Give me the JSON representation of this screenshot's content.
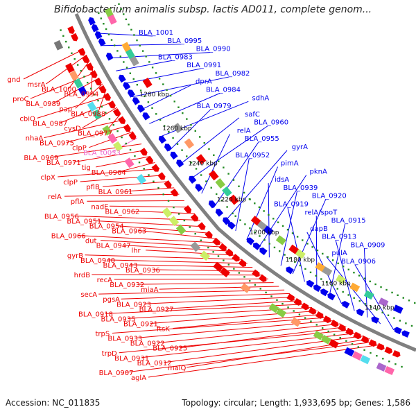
{
  "header": {
    "title": "Bifidobacterium animalis subsp. lactis AD011, complete genom..."
  },
  "footer": {
    "accession": "Accession: NC_011835",
    "info": "Topology: circular; Length: 1,933,695 bp; Genes: 1,586"
  },
  "colors": {
    "forward": "#ee0000",
    "reverse": "#0000ee",
    "rna": "#ee66cc",
    "backbone": "#808080",
    "tick_dot": "#228b22"
  },
  "ticks": [
    "1280 kbp",
    "1260 kbp",
    "1240 kbp",
    "1220 kbp",
    "1200 kbp",
    "1180 kbp",
    "1160 kbp",
    "1140 kbp"
  ],
  "left_labels": [
    "gnd",
    "msrA",
    "BLA_1000",
    "BLA_0994",
    "proC",
    "BLA_0989",
    "pap",
    "BLA_0988",
    "cbiO",
    "BLA_0987",
    "cysD",
    "BLA_0977",
    "nhaA",
    "BLA_0975",
    "clpP",
    "BLA_t0033",
    "BLA_0969",
    "BLA_0971",
    "tig",
    "BLA_0964",
    "clpX",
    "clpP",
    "pflB",
    "BLA_0961",
    "relA",
    "pflA",
    "nadE",
    "BLA_0962",
    "BLA_0956",
    "BLA_0951",
    "BLA_0954",
    "BLA_0963",
    "BLA_0966",
    "dut",
    "BLA_0947",
    "lhr",
    "gyrB",
    "BLA_0940",
    "BLA_0943",
    "BLA_0936",
    "hrdB",
    "recA",
    "BLA_0932",
    "miaA",
    "secA",
    "pgsA",
    "BLA_0923",
    "BLA_0927",
    "BLA_0918",
    "BLA_0935",
    "BLA_0921",
    "ftsK",
    "trpS",
    "BLA_0933",
    "BLA_0922",
    "BLA_0925",
    "trpD",
    "BLA_0931",
    "BLA_0912",
    "malQ",
    "BLA_0907",
    "aglA"
  ],
  "right_labels": [
    "BLA_1001",
    "BLA_0995",
    "BLA_0990",
    "BLA_0983",
    "BLA_0991",
    "BLA_0982",
    "dprA",
    "BLA_0984",
    "sdhA",
    "BLA_0979",
    "safC",
    "BLA_0960",
    "relA",
    "BLA_0955",
    "gyrA",
    "BLA_0952",
    "pimA",
    "pknA",
    "idsA",
    "BLA_0939",
    "BLA_0920",
    "BLA_0919",
    "relA/spoT",
    "BLA_0915",
    "dapB",
    "BLA_0913",
    "BLA_0909",
    "pulA",
    "BLA_0906"
  ]
}
